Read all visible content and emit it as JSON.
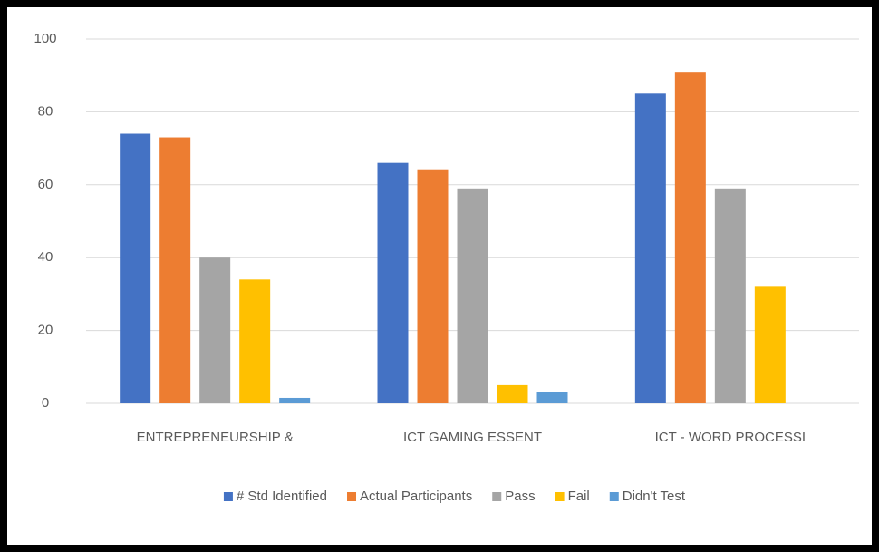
{
  "chart_data": {
    "type": "bar",
    "categories": [
      "ENTREPRENEURSHIP &",
      "ICT  GAMING ESSENT",
      "ICT - WORD PROCESSI"
    ],
    "series": [
      {
        "name": "# Std Identified",
        "color": "#4472c4",
        "values": [
          74,
          66,
          85
        ]
      },
      {
        "name": "Actual Participants",
        "color": "#ed7d31",
        "values": [
          73,
          64,
          91
        ]
      },
      {
        "name": "Pass",
        "color": "#a5a5a5",
        "values": [
          40,
          59,
          59
        ]
      },
      {
        "name": "Fail",
        "color": "#ffc000",
        "values": [
          34,
          5,
          32
        ]
      },
      {
        "name": "Didn't Test",
        "color": "#5b9bd5",
        "values": [
          1.5,
          3,
          0
        ]
      }
    ],
    "ylim": [
      0,
      100
    ],
    "yticks": [
      0,
      20,
      40,
      60,
      80,
      100
    ],
    "grid": true,
    "legend": "bottom"
  }
}
